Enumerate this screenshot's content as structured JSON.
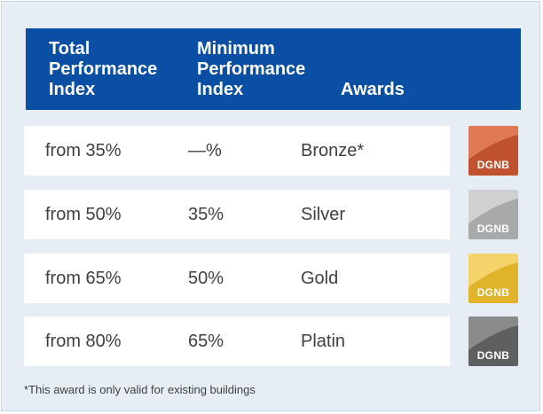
{
  "header": {
    "col1": "Total\nPerformance\nIndex",
    "col2": "Minimum\nPerformance\nIndex",
    "col3": "Awards"
  },
  "rows": [
    {
      "total": "from 35%",
      "minimum": "—%",
      "award": "Bronze*",
      "badge_label": "DGNB",
      "badge_color": "#c0522f",
      "badge_color_light": "#e07a55"
    },
    {
      "total": "from 50%",
      "minimum": "35%",
      "award": "Silver",
      "badge_label": "DGNB",
      "badge_color": "#a8a9ab",
      "badge_color_light": "#cfd0d2"
    },
    {
      "total": "from 65%",
      "minimum": "50%",
      "award": "Gold",
      "badge_label": "DGNB",
      "badge_color": "#e0b32a",
      "badge_color_light": "#f3d36a"
    },
    {
      "total": "from 80%",
      "minimum": "65%",
      "award": "Platin",
      "badge_label": "DGNB",
      "badge_color": "#5e5f61",
      "badge_color_light": "#8a8b8d"
    }
  ],
  "footnote": "*This award is only valid for existing buildings",
  "colors": {
    "header_bg": "#0a4fa3",
    "panel_bg": "#e6edf5"
  }
}
